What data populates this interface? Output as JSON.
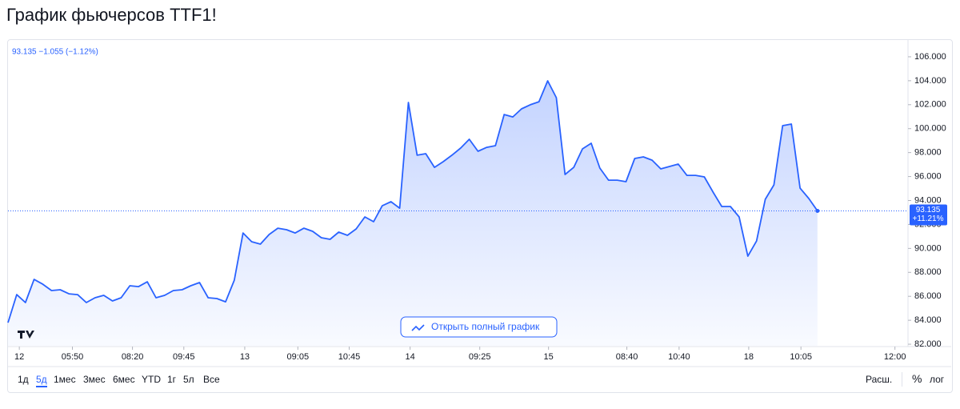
{
  "header": {
    "title": "График фьючерсов TTF1!"
  },
  "chart_data": {
    "type": "area",
    "legend_text": "93.135 −1.055 (−1.12%)",
    "last_label": {
      "price": "93.135",
      "change": "+11.21%"
    },
    "open_button": "Открыть полный график",
    "color": "#2962ff",
    "x": [
      0,
      1,
      2,
      3,
      4,
      5,
      6,
      7,
      8,
      9,
      10,
      11,
      12,
      13,
      14,
      15,
      16,
      17,
      18,
      19,
      20,
      21,
      22,
      23,
      24,
      25,
      26,
      27,
      28,
      29,
      30,
      31,
      32,
      33,
      34,
      35,
      36,
      37,
      38,
      39,
      40,
      41,
      42,
      43,
      44,
      45,
      46,
      47,
      48,
      49,
      50,
      51,
      52,
      53,
      54,
      55,
      56,
      57,
      58,
      59,
      60,
      61,
      62,
      63,
      64,
      65,
      66,
      67,
      68,
      69,
      70,
      71,
      72,
      73,
      74,
      75,
      76,
      77,
      78,
      79,
      80,
      81,
      82,
      83,
      84,
      85,
      86,
      87,
      88,
      89,
      90,
      91,
      92,
      93
    ],
    "values": [
      83.8,
      86.14,
      85.48,
      87.41,
      87.01,
      86.48,
      86.55,
      86.21,
      86.14,
      85.48,
      85.88,
      86.08,
      85.61,
      85.88,
      86.88,
      86.81,
      87.21,
      85.88,
      86.08,
      86.48,
      86.55,
      86.88,
      87.15,
      85.88,
      85.81,
      85.54,
      87.35,
      91.29,
      90.56,
      90.36,
      91.16,
      91.69,
      91.56,
      91.29,
      91.69,
      91.43,
      90.89,
      90.76,
      91.36,
      91.09,
      91.63,
      92.63,
      92.23,
      93.56,
      93.9,
      93.36,
      102.19,
      97.78,
      97.91,
      96.77,
      97.24,
      97.78,
      98.38,
      99.11,
      98.11,
      98.44,
      98.58,
      101.18,
      100.98,
      101.65,
      101.99,
      102.25,
      103.99,
      102.59,
      96.17,
      96.77,
      98.31,
      98.78,
      96.71,
      95.7,
      95.7,
      95.57,
      97.51,
      97.64,
      97.37,
      96.64,
      96.84,
      97.04,
      96.1,
      96.1,
      95.97,
      94.7,
      93.5,
      93.5,
      92.63,
      89.35,
      90.62,
      94.1,
      95.3,
      100.25,
      100.38,
      95.03,
      94.17,
      93.135
    ],
    "xlim": [
      0,
      103.4
    ],
    "xticks": [
      {
        "value": 1.3,
        "label": "12"
      },
      {
        "value": 7.4,
        "label": "05:50"
      },
      {
        "value": 14.3,
        "label": "08:20"
      },
      {
        "value": 20.2,
        "label": "09:45"
      },
      {
        "value": 27.2,
        "label": "13"
      },
      {
        "value": 33.3,
        "label": "09:05"
      },
      {
        "value": 39.2,
        "label": "10:45"
      },
      {
        "value": 46.2,
        "label": "14"
      },
      {
        "value": 54.2,
        "label": "09:25"
      },
      {
        "value": 62.1,
        "label": "15"
      },
      {
        "value": 71.1,
        "label": "08:40"
      },
      {
        "value": 77.1,
        "label": "10:40"
      },
      {
        "value": 85.1,
        "label": "18"
      },
      {
        "value": 91.1,
        "label": "10:05"
      },
      {
        "value": 101.9,
        "label": "12:00"
      }
    ],
    "ylim": [
      81.87,
      107.4
    ],
    "yticks": [
      {
        "value": 82,
        "label": "82.000"
      },
      {
        "value": 84,
        "label": "84.000"
      },
      {
        "value": 86,
        "label": "86.000"
      },
      {
        "value": 88,
        "label": "88.000"
      },
      {
        "value": 90,
        "label": "90.000"
      },
      {
        "value": 92,
        "label": "92.000"
      },
      {
        "value": 94,
        "label": "94.000"
      },
      {
        "value": 96,
        "label": "96.000"
      },
      {
        "value": 98,
        "label": "98.000"
      },
      {
        "value": 100,
        "label": "100.000"
      },
      {
        "value": 102,
        "label": "102.000"
      },
      {
        "value": 104,
        "label": "104.000"
      },
      {
        "value": 106,
        "label": "106.000"
      }
    ]
  },
  "toolbar": {
    "ranges": [
      "1д",
      "5д",
      "1мес",
      "3мес",
      "6мес",
      "YTD",
      "1г",
      "5л",
      "Все"
    ],
    "right": [
      "Расш.",
      "%",
      "лог"
    ]
  }
}
